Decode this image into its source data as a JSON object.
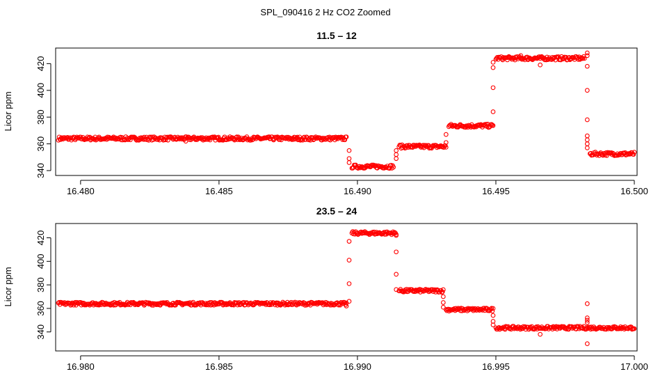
{
  "figure_title": "SPL_090416  2 Hz CO2 Zoomed",
  "colors": {
    "points": "#ff0000",
    "axis": "#000000",
    "background": "#ffffff"
  },
  "chart_data": [
    {
      "type": "scatter",
      "title": "11.5 – 12",
      "xlabel": "",
      "ylabel": "Licor ppm",
      "xlim": [
        16.4792,
        16.5
      ],
      "ylim": [
        340,
        428
      ],
      "xticks": [
        16.48,
        16.485,
        16.49,
        16.495,
        16.5
      ],
      "xtick_labels": [
        "16.480",
        "16.485",
        "16.490",
        "16.495",
        "16.500"
      ],
      "yticks": [
        340,
        360,
        380,
        400,
        420
      ],
      "ytick_labels": [
        "340",
        "360",
        "380",
        "400",
        "420"
      ],
      "marker": "open-circle",
      "segments": [
        {
          "x0": 16.4792,
          "x1": 16.4896,
          "y": 364
        },
        {
          "x0": 16.4898,
          "x1": 16.4913,
          "y": 343
        },
        {
          "x0": 16.4915,
          "x1": 16.4932,
          "y": 358
        },
        {
          "x0": 16.4933,
          "x1": 16.4949,
          "y": 373.5
        },
        {
          "x0": 16.495,
          "x1": 16.4982,
          "y": 424
        },
        {
          "x0": 16.4984,
          "x1": 16.5,
          "y": 352.5
        }
      ],
      "transitions": [
        {
          "x": 16.4897,
          "y": [
            355,
            349,
            346
          ]
        },
        {
          "x": 16.4914,
          "y": [
            349,
            352,
            355
          ]
        },
        {
          "x": 16.4932,
          "y": [
            361,
            367
          ]
        },
        {
          "x": 16.4949,
          "y": [
            384,
            402,
            417,
            421
          ]
        },
        {
          "x": 16.4983,
          "y": [
            428,
            426,
            418,
            400,
            378,
            366,
            363,
            360,
            357
          ]
        }
      ],
      "outliers": [
        {
          "x": 16.4966,
          "y": 419
        },
        {
          "x": 16.4838,
          "y": 362
        },
        {
          "x": 16.4959,
          "y": 426
        }
      ]
    },
    {
      "type": "scatter",
      "title": "23.5 – 24",
      "xlabel": "",
      "ylabel": "Licor ppm",
      "xlim": [
        16.9792,
        17.0
      ],
      "ylim": [
        328,
        428
      ],
      "xticks": [
        16.98,
        16.985,
        16.99,
        16.995,
        17.0
      ],
      "xtick_labels": [
        "16.980",
        "16.985",
        "16.990",
        "16.995",
        "17.000"
      ],
      "yticks": [
        340,
        360,
        380,
        400,
        420
      ],
      "ytick_labels": [
        "340",
        "360",
        "380",
        "400",
        "420"
      ],
      "marker": "open-circle",
      "segments": [
        {
          "x0": 16.9792,
          "x1": 16.9896,
          "y": 364
        },
        {
          "x0": 16.9898,
          "x1": 16.9914,
          "y": 424
        },
        {
          "x0": 16.9915,
          "x1": 16.9931,
          "y": 375
        },
        {
          "x0": 16.9932,
          "x1": 16.9949,
          "y": 359
        },
        {
          "x0": 16.995,
          "x1": 17.0,
          "y": 343.5
        }
      ],
      "transitions": [
        {
          "x": 16.9897,
          "y": [
            366,
            381,
            401,
            417
          ]
        },
        {
          "x": 16.9914,
          "y": [
            422,
            408,
            389,
            376
          ]
        },
        {
          "x": 16.9931,
          "y": [
            370,
            365,
            361
          ]
        },
        {
          "x": 16.9949,
          "y": [
            354,
            349,
            346
          ]
        },
        {
          "x": 16.9983,
          "y": [
            364,
            352,
            350,
            348
          ]
        }
      ],
      "outliers": [
        {
          "x": 16.9983,
          "y": 330
        },
        {
          "x": 16.9966,
          "y": 338
        },
        {
          "x": 16.9896,
          "y": 362
        }
      ]
    }
  ]
}
